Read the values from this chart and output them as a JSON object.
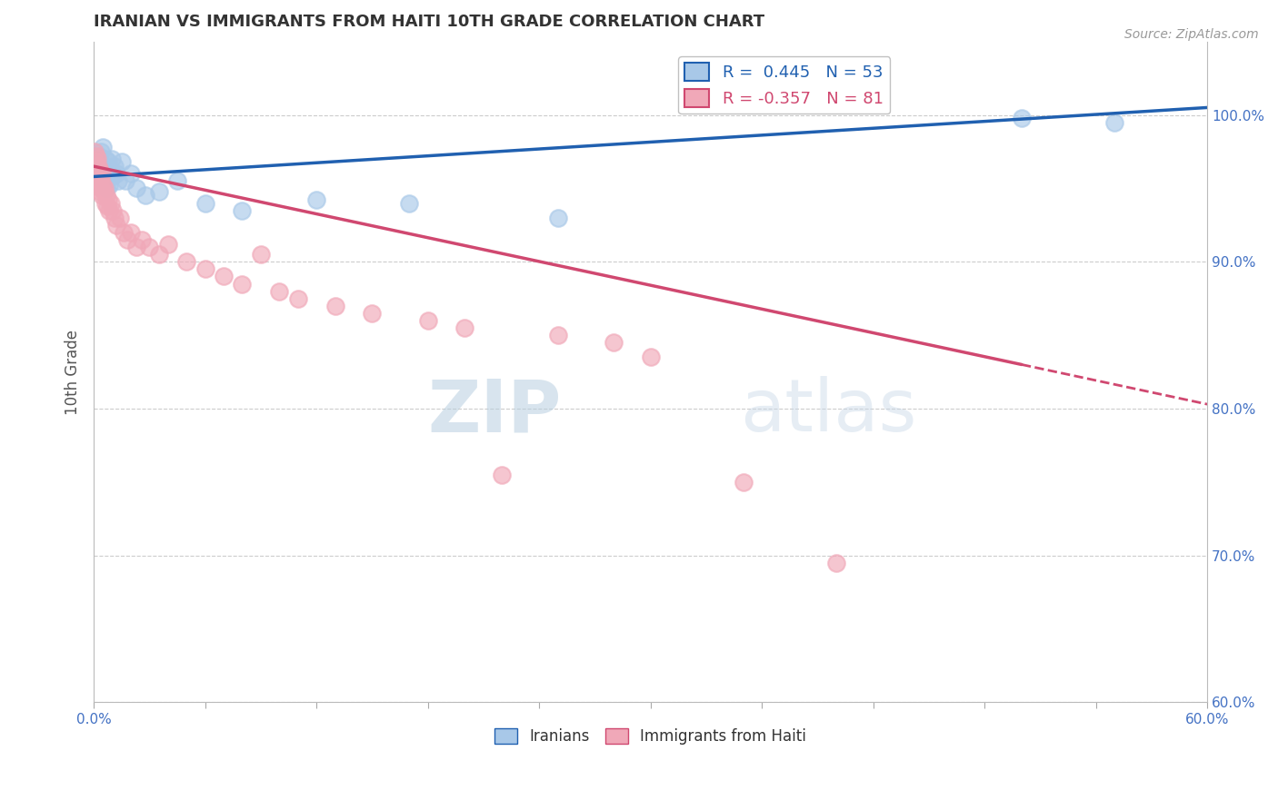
{
  "title": "IRANIAN VS IMMIGRANTS FROM HAITI 10TH GRADE CORRELATION CHART",
  "source": "Source: ZipAtlas.com",
  "ylabel": "10th Grade",
  "right_yticks": [
    60.0,
    70.0,
    80.0,
    90.0,
    100.0
  ],
  "R_blue": 0.445,
  "N_blue": 53,
  "R_pink": -0.357,
  "N_pink": 81,
  "blue_color": "#a8c8e8",
  "pink_color": "#f0a8b8",
  "blue_line_color": "#2060b0",
  "pink_line_color": "#d04870",
  "legend_label_blue": "Iranians",
  "legend_label_pink": "Immigrants from Haiti",
  "blue_scatter_x": [
    0.1,
    0.15,
    0.2,
    0.25,
    0.3,
    0.35,
    0.4,
    0.45,
    0.5,
    0.55,
    0.6,
    0.65,
    0.7,
    0.75,
    0.8,
    0.85,
    0.9,
    0.95,
    1.0,
    1.1,
    1.2,
    1.3,
    1.5,
    1.7,
    2.0,
    2.3,
    2.8,
    3.5,
    4.5,
    6.0,
    8.0,
    12.0,
    17.0,
    25.0,
    50.0,
    55.0
  ],
  "blue_scatter_y": [
    96.5,
    97.0,
    95.8,
    96.8,
    97.2,
    96.2,
    97.5,
    96.0,
    97.8,
    95.5,
    96.5,
    97.0,
    95.0,
    96.0,
    96.8,
    95.2,
    96.2,
    97.0,
    95.8,
    96.5,
    96.0,
    95.5,
    96.8,
    95.5,
    96.0,
    95.0,
    94.5,
    94.8,
    95.5,
    94.0,
    93.5,
    94.2,
    94.0,
    93.0,
    99.8,
    99.5
  ],
  "pink_scatter_x": [
    0.05,
    0.1,
    0.12,
    0.15,
    0.18,
    0.2,
    0.22,
    0.25,
    0.3,
    0.32,
    0.35,
    0.38,
    0.4,
    0.42,
    0.45,
    0.5,
    0.55,
    0.6,
    0.65,
    0.7,
    0.75,
    0.8,
    0.85,
    0.9,
    1.0,
    1.1,
    1.2,
    1.4,
    1.6,
    1.8,
    2.0,
    2.3,
    2.6,
    3.0,
    3.5,
    4.0,
    5.0,
    6.0,
    7.0,
    8.0,
    9.0,
    10.0,
    11.0,
    13.0,
    15.0,
    18.0,
    20.0,
    22.0,
    25.0,
    28.0,
    30.0,
    35.0,
    40.0
  ],
  "pink_scatter_y": [
    97.5,
    96.8,
    97.2,
    96.5,
    97.0,
    95.8,
    96.5,
    96.0,
    95.5,
    96.2,
    94.8,
    95.5,
    95.0,
    96.0,
    94.5,
    95.2,
    94.8,
    95.0,
    94.0,
    94.5,
    93.8,
    94.2,
    93.5,
    94.0,
    93.5,
    93.0,
    92.5,
    93.0,
    92.0,
    91.5,
    92.0,
    91.0,
    91.5,
    91.0,
    90.5,
    91.2,
    90.0,
    89.5,
    89.0,
    88.5,
    90.5,
    88.0,
    87.5,
    87.0,
    86.5,
    86.0,
    85.5,
    75.5,
    85.0,
    84.5,
    83.5,
    75.0,
    69.5
  ],
  "blue_line_x0": 0.0,
  "blue_line_x1": 60.0,
  "blue_line_y0": 95.8,
  "blue_line_y1": 100.5,
  "pink_line_x0": 0.0,
  "pink_line_x1": 50.0,
  "pink_line_y0": 96.5,
  "pink_line_y1": 83.0,
  "pink_dash_x0": 50.0,
  "pink_dash_x1": 60.0,
  "pink_dash_y0": 83.0,
  "pink_dash_y1": 80.3,
  "xlim": [
    0.0,
    60.0
  ],
  "ylim": [
    60.0,
    105.0
  ],
  "background_color": "#ffffff",
  "watermark_text": "ZIPatlas",
  "watermark_color": "#ccdde8"
}
